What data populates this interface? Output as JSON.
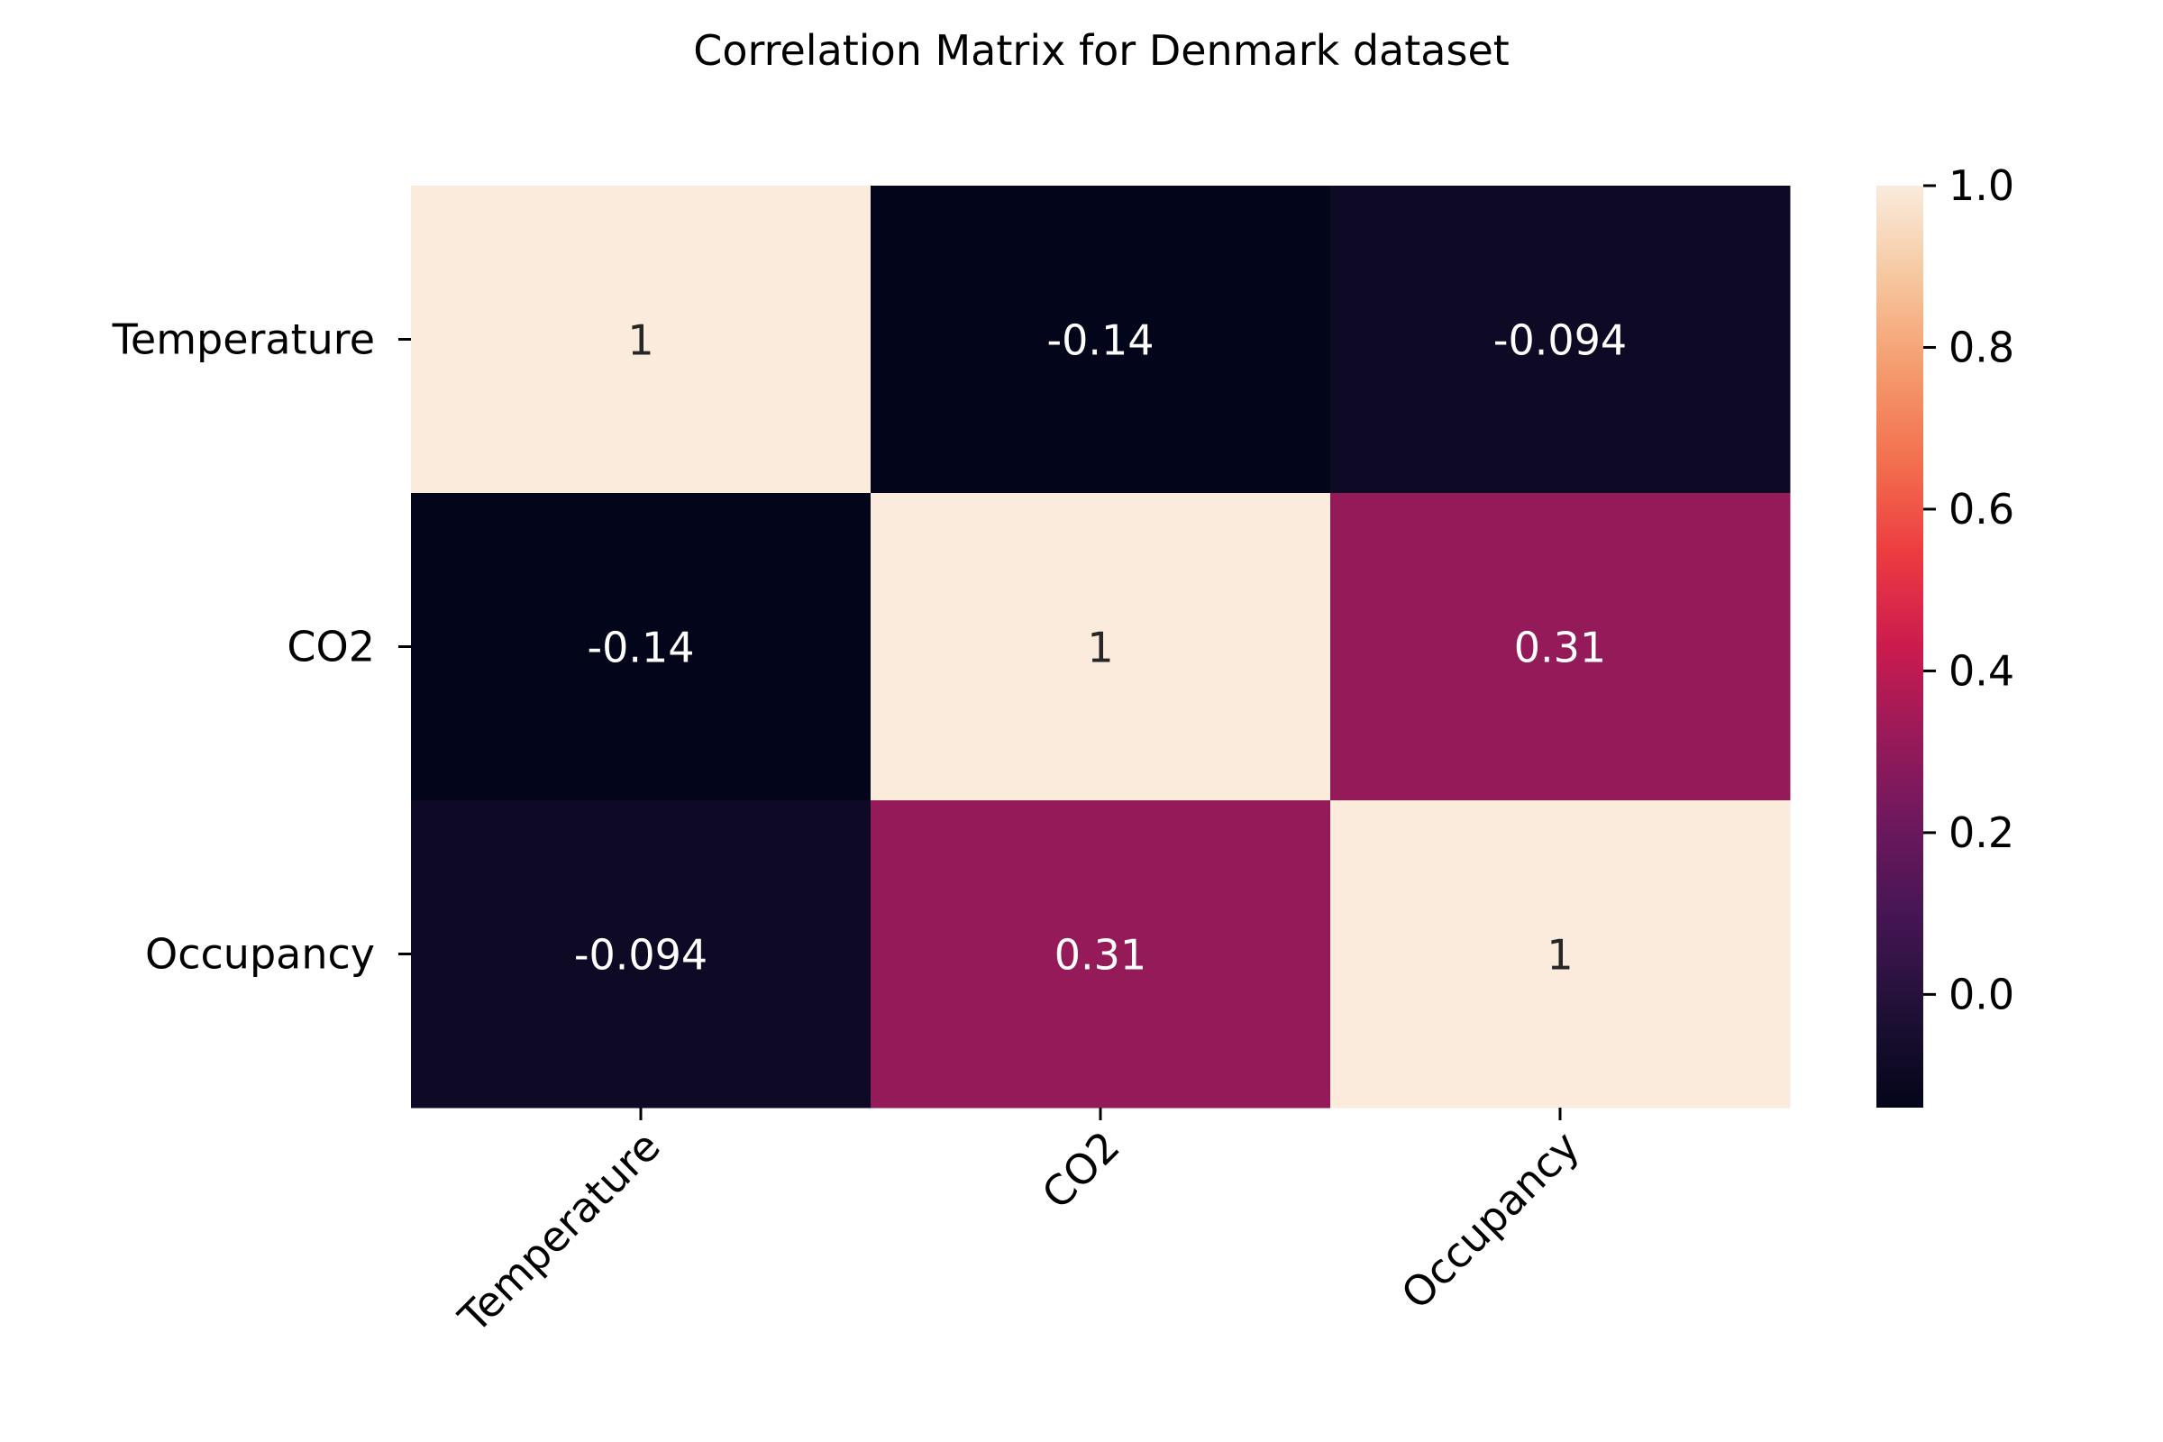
{
  "chart_data": {
    "type": "heatmap",
    "title": "Correlation Matrix for Denmark dataset",
    "xlabel": "",
    "ylabel": "",
    "row_labels": [
      "Temperature",
      "CO2",
      "Occupancy"
    ],
    "col_labels": [
      "Temperature",
      "CO2",
      "Occupancy"
    ],
    "values": [
      [
        1,
        -0.14,
        -0.094
      ],
      [
        -0.14,
        1,
        0.31
      ],
      [
        -0.094,
        0.31,
        1
      ]
    ],
    "annotations": [
      [
        "1",
        "-0.14",
        "-0.094"
      ],
      [
        "-0.14",
        "1",
        "0.31"
      ],
      [
        "-0.094",
        "0.31",
        "1"
      ]
    ],
    "colormap": "rocket",
    "vmin": -0.14,
    "vmax": 1.0,
    "colorbar": {
      "ticks": [
        0.0,
        0.2,
        0.4,
        0.6,
        0.8,
        1.0
      ],
      "tick_labels": [
        "0.0",
        "0.2",
        "0.4",
        "0.6",
        "0.8",
        "1.0"
      ],
      "placement": "right"
    },
    "grid": false,
    "colors": {
      "low": "#03051a",
      "high": "#faebdd",
      "annotation_dark": "#262626",
      "annotation_light": "#ffffff"
    }
  }
}
